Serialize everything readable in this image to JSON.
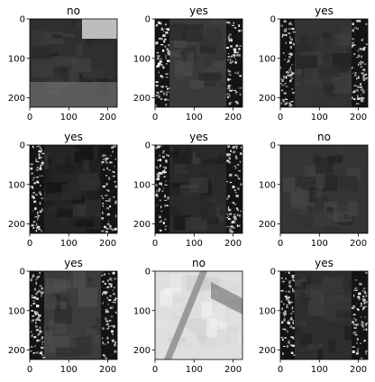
{
  "figure": {
    "background": "#ffffff",
    "axis_color": "#000000"
  },
  "chart_data": [
    {
      "type": "image",
      "title": "no",
      "xlim": [
        0,
        224
      ],
      "ylim": [
        224,
        0
      ],
      "xticks": [
        0,
        100,
        200
      ],
      "yticks": [
        0,
        100,
        200
      ],
      "xtick_labels": [
        "0",
        "100",
        "200"
      ],
      "ytick_labels": [
        "0",
        "100",
        "200"
      ],
      "colormap": "gray",
      "tone": "#2f2f2f",
      "side_panels": false,
      "bright_top_right": true
    },
    {
      "type": "image",
      "title": "yes",
      "xlim": [
        0,
        224
      ],
      "ylim": [
        224,
        0
      ],
      "xticks": [
        0,
        100,
        200
      ],
      "yticks": [
        0,
        100,
        200
      ],
      "xtick_labels": [
        "0",
        "100",
        "200"
      ],
      "ytick_labels": [
        "0",
        "100",
        "200"
      ],
      "colormap": "gray",
      "tone": "#3a3a3a",
      "side_panels": true
    },
    {
      "type": "image",
      "title": "yes",
      "xlim": [
        0,
        224
      ],
      "ylim": [
        224,
        0
      ],
      "xticks": [
        0,
        100,
        200
      ],
      "yticks": [
        0,
        100,
        200
      ],
      "xtick_labels": [
        "0",
        "100",
        "200"
      ],
      "ytick_labels": [
        "0",
        "100",
        "200"
      ],
      "colormap": "gray",
      "tone": "#333333",
      "side_panels": true
    },
    {
      "type": "image",
      "title": "yes",
      "xlim": [
        0,
        224
      ],
      "ylim": [
        224,
        0
      ],
      "xticks": [
        0,
        100,
        200
      ],
      "yticks": [
        0,
        100,
        200
      ],
      "xtick_labels": [
        "0",
        "100",
        "200"
      ],
      "ytick_labels": [
        "0",
        "100",
        "200"
      ],
      "colormap": "gray",
      "tone": "#242424",
      "side_panels": true
    },
    {
      "type": "image",
      "title": "yes",
      "xlim": [
        0,
        224
      ],
      "ylim": [
        224,
        0
      ],
      "xticks": [
        0,
        100,
        200
      ],
      "yticks": [
        0,
        100,
        200
      ],
      "xtick_labels": [
        "0",
        "100",
        "200"
      ],
      "ytick_labels": [
        "0",
        "100",
        "200"
      ],
      "colormap": "gray",
      "tone": "#2a2a2a",
      "side_panels": true
    },
    {
      "type": "image",
      "title": "no",
      "xlim": [
        0,
        224
      ],
      "ylim": [
        224,
        0
      ],
      "xticks": [
        0,
        100,
        200
      ],
      "yticks": [
        0,
        100,
        200
      ],
      "xtick_labels": [
        "0",
        "100",
        "200"
      ],
      "ytick_labels": [
        "0",
        "100",
        "200"
      ],
      "colormap": "gray",
      "tone": "#343434",
      "side_panels": false
    },
    {
      "type": "image",
      "title": "yes",
      "xlim": [
        0,
        224
      ],
      "ylim": [
        224,
        0
      ],
      "xticks": [
        0,
        100,
        200
      ],
      "yticks": [
        0,
        100,
        200
      ],
      "xtick_labels": [
        "0",
        "100",
        "200"
      ],
      "ytick_labels": [
        "0",
        "100",
        "200"
      ],
      "colormap": "gray",
      "tone": "#3c3c3c",
      "side_panels": true
    },
    {
      "type": "image",
      "title": "no",
      "xlim": [
        0,
        224
      ],
      "ylim": [
        224,
        0
      ],
      "xticks": [
        0,
        100,
        200
      ],
      "yticks": [
        0,
        100,
        200
      ],
      "xtick_labels": [
        "0",
        "100",
        "200"
      ],
      "ytick_labels": [
        "0",
        "100",
        "200"
      ],
      "colormap": "gray",
      "tone": "#d8d8d8",
      "side_panels": false,
      "bright": true
    },
    {
      "type": "image",
      "title": "yes",
      "xlim": [
        0,
        224
      ],
      "ylim": [
        224,
        0
      ],
      "xticks": [
        0,
        100,
        200
      ],
      "yticks": [
        0,
        100,
        200
      ],
      "xtick_labels": [
        "0",
        "100",
        "200"
      ],
      "ytick_labels": [
        "0",
        "100",
        "200"
      ],
      "colormap": "gray",
      "tone": "#2e2e2e",
      "side_panels": true
    }
  ]
}
